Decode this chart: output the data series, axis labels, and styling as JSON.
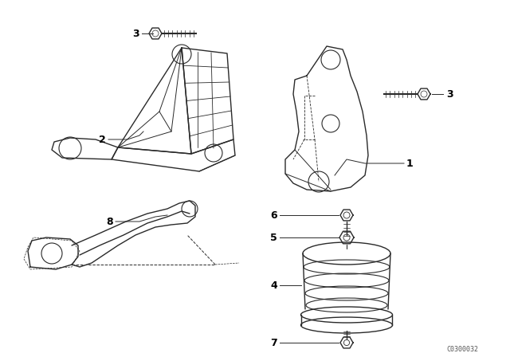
{
  "bg_color": "#ffffff",
  "line_color": "#2a2a2a",
  "fig_width": 6.4,
  "fig_height": 4.48,
  "dpi": 100,
  "watermark": "C0300032"
}
